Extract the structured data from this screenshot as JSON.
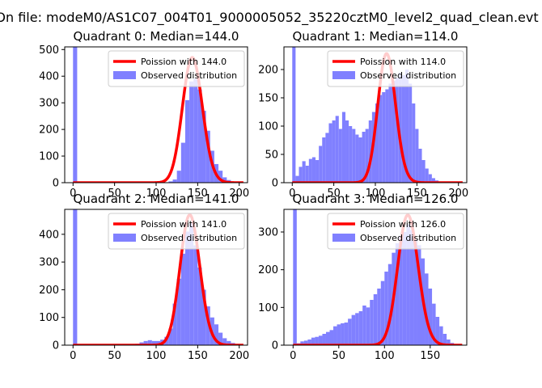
{
  "figure": {
    "suptitle": "On file: modeM0/AS1C07_004T01_9000005052_35220cztM0_level2_quad_clean.evt",
    "colors": {
      "hist": "#8080ff",
      "poisson": "#ff0000"
    }
  },
  "chart_data": [
    {
      "type": "bar",
      "title": "Quadrant 0: Median=144.0",
      "median": 144,
      "xlim": [
        -10,
        210
      ],
      "ylim": [
        0,
        510
      ],
      "xticks": [
        0,
        50,
        100,
        150,
        200
      ],
      "yticks": [
        0,
        100,
        200,
        300,
        400,
        500
      ],
      "legend": [
        "Poission with 144.0",
        "Observed distribution"
      ],
      "poisson_lambda": 144,
      "poisson_peak": 470,
      "hist": {
        "bin_width": 5,
        "bins": [
          [
            0,
            510
          ],
          [
            115,
            5
          ],
          [
            120,
            12
          ],
          [
            125,
            45
          ],
          [
            130,
            150
          ],
          [
            135,
            310
          ],
          [
            140,
            380
          ],
          [
            145,
            390
          ],
          [
            150,
            350
          ],
          [
            155,
            270
          ],
          [
            160,
            195
          ],
          [
            165,
            120
          ],
          [
            170,
            70
          ],
          [
            175,
            45
          ],
          [
            180,
            20
          ],
          [
            185,
            10
          ],
          [
            190,
            4
          ],
          [
            195,
            2
          ]
        ]
      }
    },
    {
      "type": "bar",
      "title": "Quadrant 1: Median=114.0",
      "median": 114,
      "xlim": [
        -10,
        210
      ],
      "ylim": [
        0,
        240
      ],
      "xticks": [
        0,
        50,
        100,
        150,
        200
      ],
      "yticks": [
        0,
        50,
        100,
        150,
        200
      ],
      "legend": [
        "Poission with 114.0",
        "Observed distribution"
      ],
      "poisson_lambda": 114,
      "poisson_peak": 228,
      "hist": {
        "bin_width": 4,
        "bins": [
          [
            0,
            245
          ],
          [
            4,
            12
          ],
          [
            8,
            28
          ],
          [
            12,
            38
          ],
          [
            16,
            30
          ],
          [
            20,
            42
          ],
          [
            24,
            45
          ],
          [
            28,
            40
          ],
          [
            32,
            65
          ],
          [
            36,
            80
          ],
          [
            40,
            88
          ],
          [
            44,
            105
          ],
          [
            48,
            110
          ],
          [
            52,
            118
          ],
          [
            56,
            95
          ],
          [
            60,
            125
          ],
          [
            64,
            110
          ],
          [
            68,
            100
          ],
          [
            72,
            95
          ],
          [
            76,
            85
          ],
          [
            80,
            80
          ],
          [
            84,
            90
          ],
          [
            88,
            95
          ],
          [
            92,
            110
          ],
          [
            96,
            125
          ],
          [
            100,
            140
          ],
          [
            104,
            155
          ],
          [
            108,
            160
          ],
          [
            112,
            165
          ],
          [
            116,
            175
          ],
          [
            120,
            180
          ],
          [
            124,
            185
          ],
          [
            128,
            195
          ],
          [
            132,
            190
          ],
          [
            136,
            200
          ],
          [
            140,
            175
          ],
          [
            144,
            140
          ],
          [
            148,
            95
          ],
          [
            152,
            60
          ],
          [
            156,
            40
          ],
          [
            160,
            25
          ],
          [
            164,
            15
          ],
          [
            168,
            8
          ],
          [
            172,
            4
          ]
        ]
      }
    },
    {
      "type": "bar",
      "title": "Quadrant 2: Median=141.0",
      "median": 141,
      "xlim": [
        -10,
        210
      ],
      "ylim": [
        0,
        490
      ],
      "xticks": [
        0,
        50,
        100,
        150,
        200
      ],
      "yticks": [
        0,
        100,
        200,
        300,
        400
      ],
      "legend": [
        "Poission with 141.0",
        "Observed distribution"
      ],
      "poisson_lambda": 141,
      "poisson_peak": 470,
      "hist": {
        "bin_width": 5,
        "bins": [
          [
            0,
            500
          ],
          [
            75,
            5
          ],
          [
            80,
            10
          ],
          [
            85,
            15
          ],
          [
            90,
            18
          ],
          [
            95,
            15
          ],
          [
            100,
            15
          ],
          [
            105,
            20
          ],
          [
            110,
            30
          ],
          [
            115,
            60
          ],
          [
            120,
            150
          ],
          [
            125,
            240
          ],
          [
            130,
            330
          ],
          [
            135,
            410
          ],
          [
            140,
            440
          ],
          [
            145,
            360
          ],
          [
            150,
            280
          ],
          [
            155,
            200
          ],
          [
            160,
            140
          ],
          [
            165,
            100
          ],
          [
            170,
            75
          ],
          [
            175,
            45
          ],
          [
            180,
            25
          ],
          [
            185,
            15
          ],
          [
            190,
            8
          ],
          [
            195,
            3
          ]
        ]
      }
    },
    {
      "type": "bar",
      "title": "Quadrant 3: Median=126.0",
      "median": 126,
      "xlim": [
        -10,
        190
      ],
      "ylim": [
        0,
        360
      ],
      "xticks": [
        0,
        50,
        100,
        150
      ],
      "yticks": [
        0,
        100,
        200,
        300
      ],
      "legend": [
        "Poission with 126.0",
        "Observed distribution"
      ],
      "poisson_lambda": 126,
      "poisson_peak": 345,
      "hist": {
        "bin_width": 4,
        "bins": [
          [
            0,
            360
          ],
          [
            4,
            5
          ],
          [
            8,
            10
          ],
          [
            12,
            12
          ],
          [
            16,
            15
          ],
          [
            20,
            20
          ],
          [
            24,
            22
          ],
          [
            28,
            25
          ],
          [
            32,
            30
          ],
          [
            36,
            35
          ],
          [
            40,
            40
          ],
          [
            44,
            50
          ],
          [
            48,
            55
          ],
          [
            52,
            58
          ],
          [
            56,
            60
          ],
          [
            60,
            70
          ],
          [
            64,
            80
          ],
          [
            68,
            85
          ],
          [
            72,
            90
          ],
          [
            76,
            105
          ],
          [
            80,
            100
          ],
          [
            84,
            120
          ],
          [
            88,
            135
          ],
          [
            92,
            150
          ],
          [
            96,
            170
          ],
          [
            100,
            195
          ],
          [
            104,
            215
          ],
          [
            108,
            245
          ],
          [
            112,
            270
          ],
          [
            116,
            290
          ],
          [
            120,
            300
          ],
          [
            124,
            320
          ],
          [
            128,
            305
          ],
          [
            132,
            280
          ],
          [
            136,
            265
          ],
          [
            140,
            230
          ],
          [
            144,
            190
          ],
          [
            148,
            150
          ],
          [
            152,
            110
          ],
          [
            156,
            75
          ],
          [
            160,
            50
          ],
          [
            164,
            30
          ],
          [
            168,
            15
          ],
          [
            172,
            6
          ],
          [
            176,
            3
          ]
        ]
      }
    }
  ]
}
